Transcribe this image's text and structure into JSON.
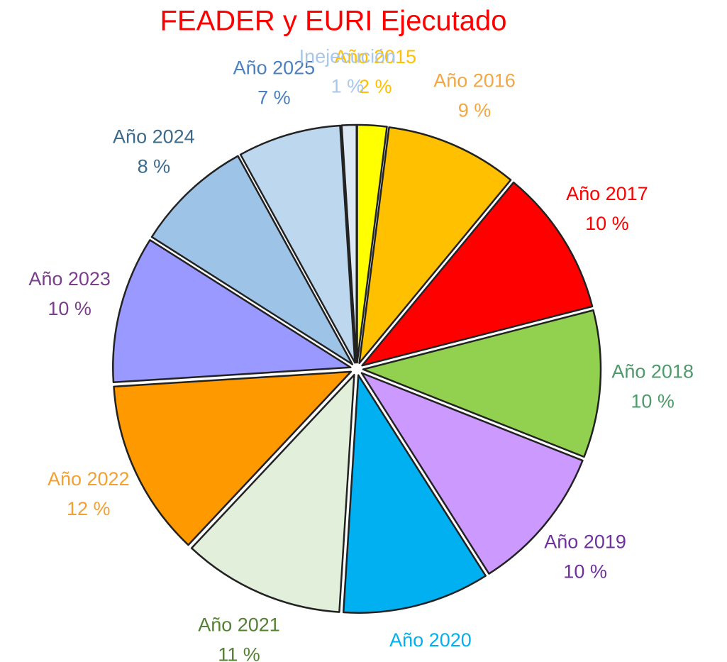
{
  "chart_data": {
    "type": "pie",
    "title": "FEADER y EURI Ejecutado",
    "categories": [
      "Año 2015",
      "Año 2016",
      "Año 2017",
      "Año 2018",
      "Año 2019",
      "Año 2020",
      "Año 2021",
      "Año 2022",
      "Año 2023",
      "Año 2024",
      "Año 2025",
      "Inejecución"
    ],
    "values": [
      2,
      9,
      10,
      10,
      10,
      10,
      11,
      12,
      10,
      8,
      7,
      1
    ],
    "value_labels": [
      "2 %",
      "9 %",
      "10 %",
      "10 %",
      "10 %",
      "10 %",
      "11 %",
      "12 %",
      "10 %",
      "8 %",
      "7 %",
      "1 %"
    ],
    "colors": [
      "#ffff00",
      "#ffc000",
      "#ff0000",
      "#92d050",
      "#cc99ff",
      "#00b0f0",
      "#e2efda",
      "#ff9900",
      "#9999ff",
      "#9dc3e6",
      "#bdd7ee",
      "#dde8f5"
    ],
    "label_colors": [
      "#ffc000",
      "#f4a640",
      "#ff0000",
      "#4e9a6a",
      "#7030a0",
      "#00b0f0",
      "#548235",
      "#f4a030",
      "#7a3f8a",
      "#3d6a8a",
      "#4a7fc0",
      "#a9c7e8"
    ],
    "title_color": "#ff0000"
  }
}
